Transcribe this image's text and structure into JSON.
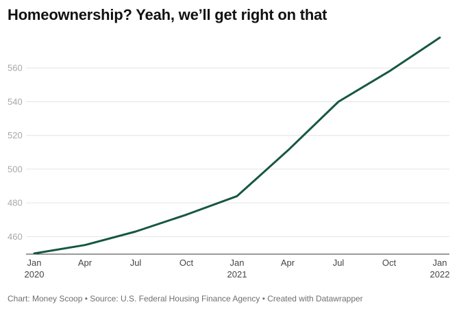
{
  "chart_data": {
    "type": "line",
    "title": "Homeownership? Yeah, we’ll get right on that",
    "xlabel": "",
    "ylabel": "",
    "x": [
      "2020-01",
      "2020-04",
      "2020-07",
      "2020-10",
      "2021-01",
      "2021-04",
      "2021-07",
      "2021-10",
      "2022-01"
    ],
    "x_tick_labels": [
      {
        "month": "Jan",
        "year": "2020"
      },
      {
        "month": "Apr",
        "year": ""
      },
      {
        "month": "Jul",
        "year": ""
      },
      {
        "month": "Oct",
        "year": ""
      },
      {
        "month": "Jan",
        "year": "2021"
      },
      {
        "month": "Apr",
        "year": ""
      },
      {
        "month": "Jul",
        "year": ""
      },
      {
        "month": "Oct",
        "year": ""
      },
      {
        "month": "Jan",
        "year": "2022"
      }
    ],
    "series": [
      {
        "values": [
          450,
          455,
          463,
          473,
          484,
          511,
          540,
          558,
          578
        ],
        "color": "#15583f"
      }
    ],
    "yticks": [
      460,
      480,
      500,
      520,
      540,
      560
    ],
    "ylim": [
      450,
      580
    ],
    "grid": true,
    "legend": "none"
  },
  "footer": {
    "credit": "Chart: Money Scoop • Source: U.S. Federal Housing Finance Agency • Created with Datawrapper"
  },
  "colors": {
    "line": "#15583f",
    "grid": "#e4e4e4",
    "axis": "#333333",
    "tick_text": "#a7a7a7",
    "x_text": "#444444"
  }
}
